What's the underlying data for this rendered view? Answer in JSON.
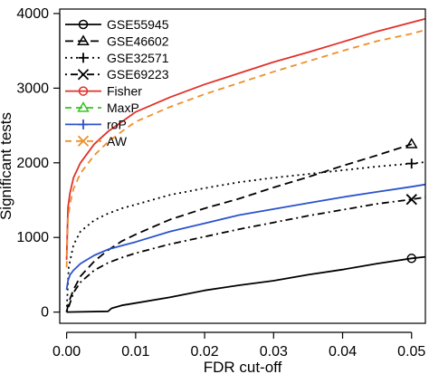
{
  "chart_data": {
    "type": "line",
    "xlabel": "FDR cut-off",
    "ylabel": "Significant tests",
    "xlim": [
      -0.001,
      0.052
    ],
    "ylim": [
      -150,
      4060
    ],
    "x_ticks": [
      0.0,
      0.01,
      0.02,
      0.03,
      0.04,
      0.05
    ],
    "x_tick_labels": [
      "0.00",
      "0.01",
      "0.02",
      "0.03",
      "0.04",
      "0.05"
    ],
    "y_ticks": [
      0,
      1000,
      2000,
      3000,
      4000
    ],
    "y_tick_labels": [
      "0",
      "1000",
      "2000",
      "3000",
      "4000"
    ],
    "grid": false,
    "legend": "top-left",
    "series": [
      {
        "name": "GSE55945",
        "color": "#000000",
        "dash": "solid",
        "marker": "circle",
        "x": [
          0.0,
          0.006,
          0.0065,
          0.008,
          0.01,
          0.015,
          0.02,
          0.025,
          0.03,
          0.035,
          0.04,
          0.045,
          0.05,
          0.052
        ],
        "y": [
          0,
          10,
          50,
          90,
          120,
          200,
          290,
          360,
          420,
          500,
          570,
          650,
          720,
          740
        ]
      },
      {
        "name": "GSE46602",
        "color": "#000000",
        "dash": "longdash",
        "marker": "triangle",
        "x": [
          0.0,
          0.0003,
          0.001,
          0.002,
          0.004,
          0.006,
          0.008,
          0.01,
          0.015,
          0.02,
          0.025,
          0.03,
          0.035,
          0.04,
          0.045,
          0.05
        ],
        "y": [
          0,
          130,
          300,
          480,
          680,
          830,
          950,
          1040,
          1240,
          1390,
          1520,
          1670,
          1810,
          1960,
          2100,
          2250
        ]
      },
      {
        "name": "GSE32571",
        "color": "#000000",
        "dash": "dotted",
        "marker": "plus",
        "x": [
          0.0,
          0.0003,
          0.001,
          0.002,
          0.004,
          0.006,
          0.008,
          0.01,
          0.015,
          0.02,
          0.025,
          0.03,
          0.035,
          0.04,
          0.045,
          0.05,
          0.052
        ],
        "y": [
          0,
          600,
          900,
          1080,
          1230,
          1320,
          1390,
          1440,
          1570,
          1660,
          1740,
          1800,
          1850,
          1900,
          1950,
          1990,
          2010
        ]
      },
      {
        "name": "GSE69223",
        "color": "#000000",
        "dash": "dotdash",
        "marker": "cross",
        "x": [
          0.0,
          0.0003,
          0.001,
          0.002,
          0.004,
          0.006,
          0.008,
          0.01,
          0.015,
          0.02,
          0.025,
          0.03,
          0.035,
          0.04,
          0.045,
          0.05,
          0.052
        ],
        "y": [
          0,
          70,
          260,
          400,
          560,
          660,
          730,
          790,
          910,
          1010,
          1110,
          1200,
          1290,
          1370,
          1450,
          1510,
          1540
        ]
      },
      {
        "name": "Fisher",
        "color": "#e0312a",
        "dash": "solid",
        "marker": "circle",
        "x": [
          0.0,
          0.0002,
          0.0005,
          0.001,
          0.002,
          0.004,
          0.006,
          0.008,
          0.01,
          0.015,
          0.02,
          0.025,
          0.03,
          0.035,
          0.04,
          0.045,
          0.05,
          0.052
        ],
        "y": [
          700,
          1400,
          1600,
          1800,
          2000,
          2250,
          2420,
          2550,
          2680,
          2880,
          3050,
          3200,
          3350,
          3480,
          3620,
          3760,
          3880,
          3930
        ]
      },
      {
        "name": "MaxP",
        "color": "#35c420",
        "dash": "dashed",
        "marker": "triangle",
        "x": [],
        "y": []
      },
      {
        "name": "roP",
        "color": "#2a52cc",
        "dash": "solid",
        "marker": "plus",
        "x": [
          0.0,
          0.0002,
          0.0005,
          0.001,
          0.002,
          0.004,
          0.006,
          0.008,
          0.01,
          0.015,
          0.02,
          0.025,
          0.03,
          0.035,
          0.04,
          0.045,
          0.05,
          0.052
        ],
        "y": [
          300,
          420,
          500,
          560,
          650,
          760,
          840,
          890,
          940,
          1080,
          1190,
          1300,
          1380,
          1460,
          1540,
          1610,
          1680,
          1710
        ]
      },
      {
        "name": "AW",
        "color": "#ef8f2a",
        "dash": "dashed",
        "marker": "cross",
        "x": [
          0.0,
          0.0002,
          0.0005,
          0.001,
          0.002,
          0.004,
          0.006,
          0.008,
          0.01,
          0.015,
          0.02,
          0.025,
          0.03,
          0.035,
          0.04,
          0.045,
          0.05,
          0.052
        ],
        "y": [
          600,
          1250,
          1450,
          1650,
          1860,
          2100,
          2280,
          2420,
          2550,
          2750,
          2920,
          3070,
          3220,
          3360,
          3500,
          3630,
          3730,
          3780
        ]
      }
    ],
    "end_markers": [
      {
        "series": "GSE55945",
        "x": 0.05,
        "y": 720
      },
      {
        "series": "GSE46602",
        "x": 0.05,
        "y": 2250
      },
      {
        "series": "GSE32571",
        "x": 0.05,
        "y": 1990
      },
      {
        "series": "GSE69223",
        "x": 0.05,
        "y": 1510
      }
    ]
  }
}
